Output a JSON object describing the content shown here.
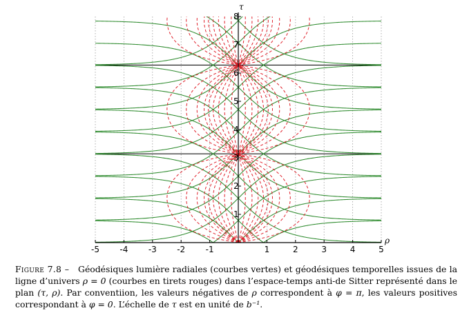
{
  "chart_data": {
    "type": "line",
    "xlabel": "ρ",
    "ylabel": "τ",
    "xlim": [
      -5,
      5
    ],
    "ylim": [
      0,
      8
    ],
    "x_ticks": [
      -5,
      -4,
      -3,
      -2,
      -1,
      1,
      2,
      3,
      4,
      5
    ],
    "y_ticks": [
      1,
      2,
      3,
      4,
      5,
      6,
      7,
      8
    ],
    "grid": true,
    "horizontal_lines_tau": [
      0,
      3.1416,
      6.2832
    ],
    "series": [
      {
        "style": "solid",
        "color": "#2e8b2e",
        "equation": "tan(tau - tau0) = ± sinh(rho)",
        "tau0_values": [
          -0.7854,
          0,
          0.7854,
          1.5708,
          2.3562,
          3.1416,
          3.927,
          4.7124,
          5.4978,
          6.2832,
          7.0686,
          7.854
        ]
      },
      {
        "style": "dashed",
        "color": "#e0202a",
        "equation": "sinh(rho) = v * |sin(tau)|",
        "v_values": [
          0.25,
          0.5,
          0.75,
          1,
          1.25,
          1.5,
          2,
          3,
          6
        ]
      }
    ]
  },
  "caption": {
    "label": "Figure 7.8 –",
    "text_1": "Géodésiques lumière radiales (courbes vertes) et géodésiques temporelles issues de la ligne d’univers ",
    "math_rho0": "ρ = 0",
    "text_2": " (courbes en tirets rouges) dans l’espace-temps anti-de Sitter représenté dans le plan ",
    "math_plane": "(τ, ρ)",
    "text_3": ". Par conventiion, les valeurs négatives de ",
    "math_rho": "ρ",
    "text_4": " correspondent à ",
    "math_phi_pi": "φ = π",
    "text_5": ", les valeurs positives correspondant à ",
    "math_phi_0": "φ = 0",
    "text_6": ". L’échelle de ",
    "math_tau": "τ",
    "text_7": " est en unité de ",
    "math_unit": "b⁻¹",
    "text_8": "."
  }
}
